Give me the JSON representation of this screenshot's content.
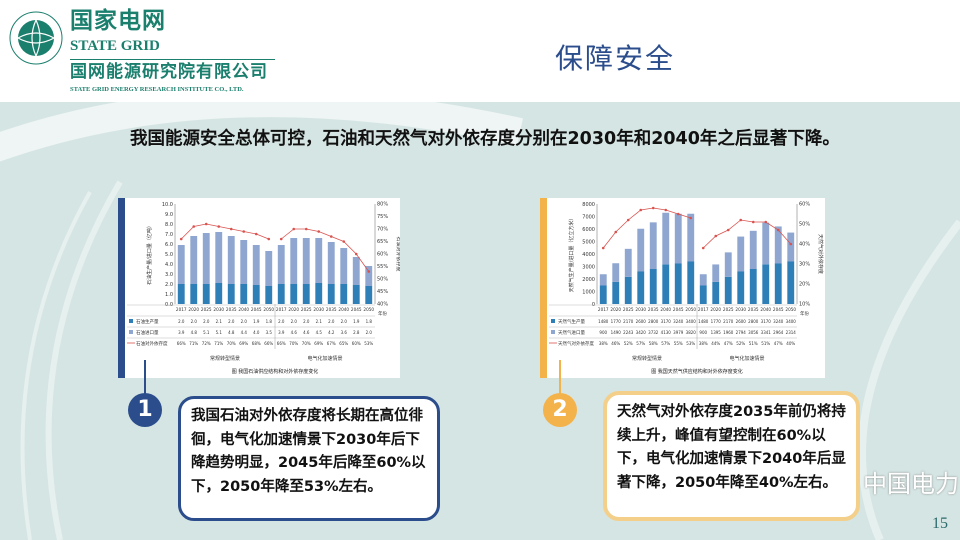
{
  "header": {
    "logo_cn": "国家电网",
    "logo_en": "STATE GRID",
    "institute_cn": "国网能源研究院有限公司",
    "institute_en": "STATE GRID ENERGY RESEARCH INSTITUTE CO., LTD.",
    "title": "保障安全"
  },
  "lead": "我国能源安全总体可控，石油和天然气对外依存度分别在2030年和2040年之后显著下降。",
  "colors": {
    "accent_blue": "#2b4d8c",
    "accent_orange": "#f3b24a",
    "brand_green": "#1b7f6d",
    "production": "#2e7fb8",
    "import": "#8ea6d0",
    "dependence": "#d9534f"
  },
  "chart_data": [
    {
      "type": "bar",
      "stacked": true,
      "ylabel": "石油生产量/进口量（亿吨）",
      "y2label": "石油对外依存度",
      "ylim": [
        0,
        10
      ],
      "y2lim": [
        40,
        80
      ],
      "yticks": [
        "0.0",
        "1.0",
        "2.0",
        "3.0",
        "4.0",
        "5.0",
        "6.0",
        "7.0",
        "8.0",
        "9.0",
        "10.0"
      ],
      "y2ticks": [
        "40%",
        "45%",
        "50%",
        "55%",
        "60%",
        "65%",
        "70%",
        "75%",
        "80%"
      ],
      "x_unit": "年份",
      "categories": [
        "2017",
        "2020",
        "2025",
        "2030",
        "2035",
        "2040",
        "2045",
        "2050",
        "2017",
        "2020",
        "2025",
        "2030",
        "2035",
        "2040",
        "2045",
        "2050"
      ],
      "scenarios": [
        "常规转型情景",
        "电气化加速情景"
      ],
      "series": [
        {
          "name": "石油生产量",
          "values": [
            2.0,
            2.0,
            2.0,
            2.1,
            2.0,
            2.0,
            1.9,
            1.8,
            2.0,
            2.0,
            2.0,
            2.1,
            2.0,
            2.0,
            1.9,
            1.8
          ],
          "labels": [
            "2.0",
            "2.0",
            "2.0",
            "2.1",
            "2.0",
            "2.0",
            "1.9",
            "1.8",
            "2.0",
            "2.0",
            "2.0",
            "2.1",
            "2.0",
            "2.0",
            "1.9",
            "1.8"
          ]
        },
        {
          "name": "石油进口量",
          "values": [
            3.9,
            4.8,
            5.1,
            5.1,
            4.8,
            4.4,
            4.0,
            3.5,
            3.9,
            4.6,
            4.6,
            4.5,
            4.2,
            3.6,
            2.8,
            2.0
          ],
          "labels": [
            "3.9",
            "4.8",
            "5.1",
            "5.1",
            "4.8",
            "4.4",
            "4.0",
            "3.5",
            "3.9",
            "4.6",
            "4.6",
            "4.5",
            "4.2",
            "3.6",
            "2.8",
            "2.0"
          ]
        },
        {
          "name": "石油对外依存度",
          "axis": "right",
          "values": [
            66,
            71,
            72,
            71,
            70,
            69,
            68,
            66,
            66,
            70,
            70,
            69,
            67,
            65,
            60,
            53
          ],
          "labels": [
            "66%",
            "71%",
            "72%",
            "71%",
            "70%",
            "69%",
            "68%",
            "66%",
            "66%",
            "70%",
            "70%",
            "69%",
            "67%",
            "65%",
            "60%",
            "53%"
          ]
        }
      ],
      "caption": "图  我国石油供应结构和对外依存度变化"
    },
    {
      "type": "bar",
      "stacked": true,
      "ylabel": "天然气生产量/进口量（亿立方米）",
      "y2label": "天然气对外依存度",
      "ylim": [
        0,
        8000
      ],
      "y2lim": [
        10,
        60
      ],
      "yticks": [
        "0",
        "1000",
        "2000",
        "3000",
        "4000",
        "5000",
        "6000",
        "7000",
        "8000"
      ],
      "y2ticks": [
        "10%",
        "20%",
        "30%",
        "40%",
        "50%",
        "60%"
      ],
      "x_unit": "年份",
      "categories": [
        "2017",
        "2020",
        "2025",
        "2030",
        "2035",
        "2040",
        "2045",
        "2050",
        "2017",
        "2020",
        "2025",
        "2030",
        "2035",
        "2040",
        "2045",
        "2050"
      ],
      "scenarios": [
        "常规转型情景",
        "电气化加速情景"
      ],
      "series": [
        {
          "name": "天然气生产量",
          "values": [
            1480,
            1770,
            2170,
            2600,
            2800,
            3170,
            3240,
            3400,
            1480,
            1770,
            2170,
            2600,
            2800,
            3170,
            3240,
            3400
          ],
          "labels": [
            "1480",
            "1770",
            "2170",
            "2600",
            "2800",
            "3170",
            "3240",
            "3400",
            "1480",
            "1770",
            "2170",
            "2600",
            "2800",
            "3170",
            "3240",
            "3400"
          ]
        },
        {
          "name": "天然气进口量",
          "values": [
            900,
            1490,
            2243,
            3420,
            3732,
            4130,
            3979,
            3820,
            900,
            1395,
            1960,
            2794,
            3056,
            3341,
            2964,
            2314
          ],
          "labels": [
            "900",
            "1490",
            "2243",
            "3420",
            "3732",
            "4130",
            "3979",
            "3820",
            "900",
            "1395",
            "1960",
            "2794",
            "3056",
            "3341",
            "2964",
            "2314"
          ]
        },
        {
          "name": "天然气对外依存度",
          "axis": "right",
          "values": [
            38,
            46,
            52,
            57,
            58,
            57,
            55,
            53,
            38,
            44,
            47,
            52,
            51,
            51,
            47,
            40
          ],
          "labels": [
            "38%",
            "46%",
            "52%",
            "57%",
            "58%",
            "57%",
            "55%",
            "53%",
            "38%",
            "44%",
            "47%",
            "52%",
            "51%",
            "51%",
            "47%",
            "40%"
          ]
        }
      ],
      "caption": "图  我国天然气供应结构和对外依存度变化"
    }
  ],
  "callouts": [
    {
      "number": "1",
      "text": "我国石油对外依存度将长期在高位徘徊，电气化加速情景下2030年后下降趋势明显，2045年后降至60%以下，2050年降至53%左右。"
    },
    {
      "number": "2",
      "text": "天然气对外依存度2035年前仍将持续上升，峰值有望控制在60%以下，电气化加速情景下2040年后显著下降，2050年降至40%左右。"
    }
  ],
  "watermark": "中国电力",
  "page_number": "15"
}
